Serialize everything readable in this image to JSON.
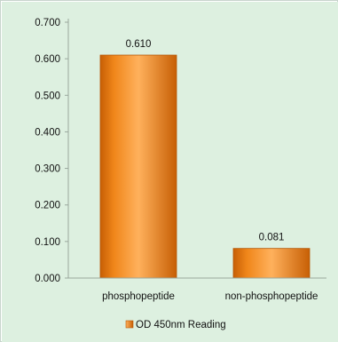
{
  "chart_data": {
    "type": "bar",
    "categories": [
      "phosphopeptide",
      "non-phosphopeptide"
    ],
    "series": [
      {
        "name": "OD 450nm Reading",
        "values": [
          0.61,
          0.081
        ]
      }
    ],
    "data_labels": [
      "0.610",
      "0.081"
    ],
    "y_ticks": [
      "0.000",
      "0.100",
      "0.200",
      "0.300",
      "0.400",
      "0.500",
      "0.600",
      "0.700"
    ],
    "ylim": [
      0,
      0.7
    ],
    "grid": false,
    "legend_position": "bottom",
    "colors": {
      "plot_background": "#ddf0e0",
      "bar_light": "#ffb15c",
      "bar_mid": "#f0861a",
      "bar_dark": "#c75f05",
      "axis": "#9aa79d"
    }
  }
}
